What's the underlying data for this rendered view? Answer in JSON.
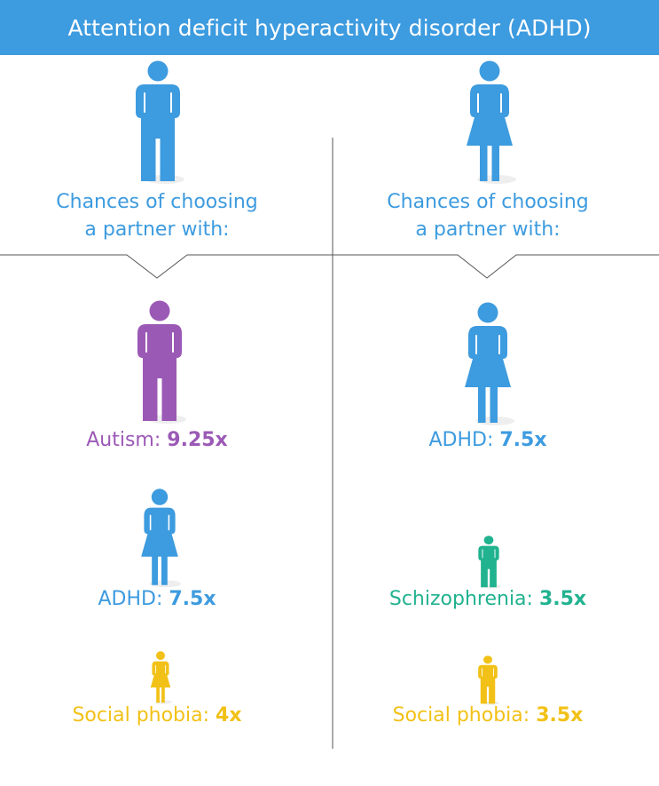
{
  "title": "Attention deficit hyperactivity disorder (ADHD)",
  "colors": {
    "header": "#3d9bdf",
    "blue": "#3d9bdf",
    "purple": "#9b59b6",
    "teal": "#21b28f",
    "yellow": "#f2c117",
    "divider": "#555555",
    "shadow": "#eeeeee"
  },
  "left": {
    "subject_icon": "male-figure-icon",
    "heading_line1": "Chances of choosing",
    "heading_line2": "a partner with:",
    "items": [
      {
        "icon": "male-figure-icon",
        "color": "purple",
        "condition": "Autism:",
        "value": "9.25x",
        "multiplier": 9.25
      },
      {
        "icon": "female-figure-icon",
        "color": "blue",
        "condition": "ADHD:",
        "value": "7.5x",
        "multiplier": 7.5
      },
      {
        "icon": "female-figure-icon",
        "color": "yellow",
        "condition": "Social phobia:",
        "value": "4x",
        "multiplier": 4
      }
    ]
  },
  "right": {
    "subject_icon": "female-figure-icon",
    "heading_line1": "Chances of choosing",
    "heading_line2": "a partner with:",
    "items": [
      {
        "icon": "female-figure-icon",
        "color": "blue",
        "condition": "ADHD:",
        "value": "7.5x",
        "multiplier": 7.5
      },
      {
        "icon": "male-figure-icon",
        "color": "teal",
        "condition": "Schizophrenia:",
        "value": "3.5x",
        "multiplier": 3.5
      },
      {
        "icon": "male-figure-icon",
        "color": "yellow",
        "condition": "Social phobia:",
        "value": "3.5x",
        "multiplier": 3.5
      }
    ]
  }
}
